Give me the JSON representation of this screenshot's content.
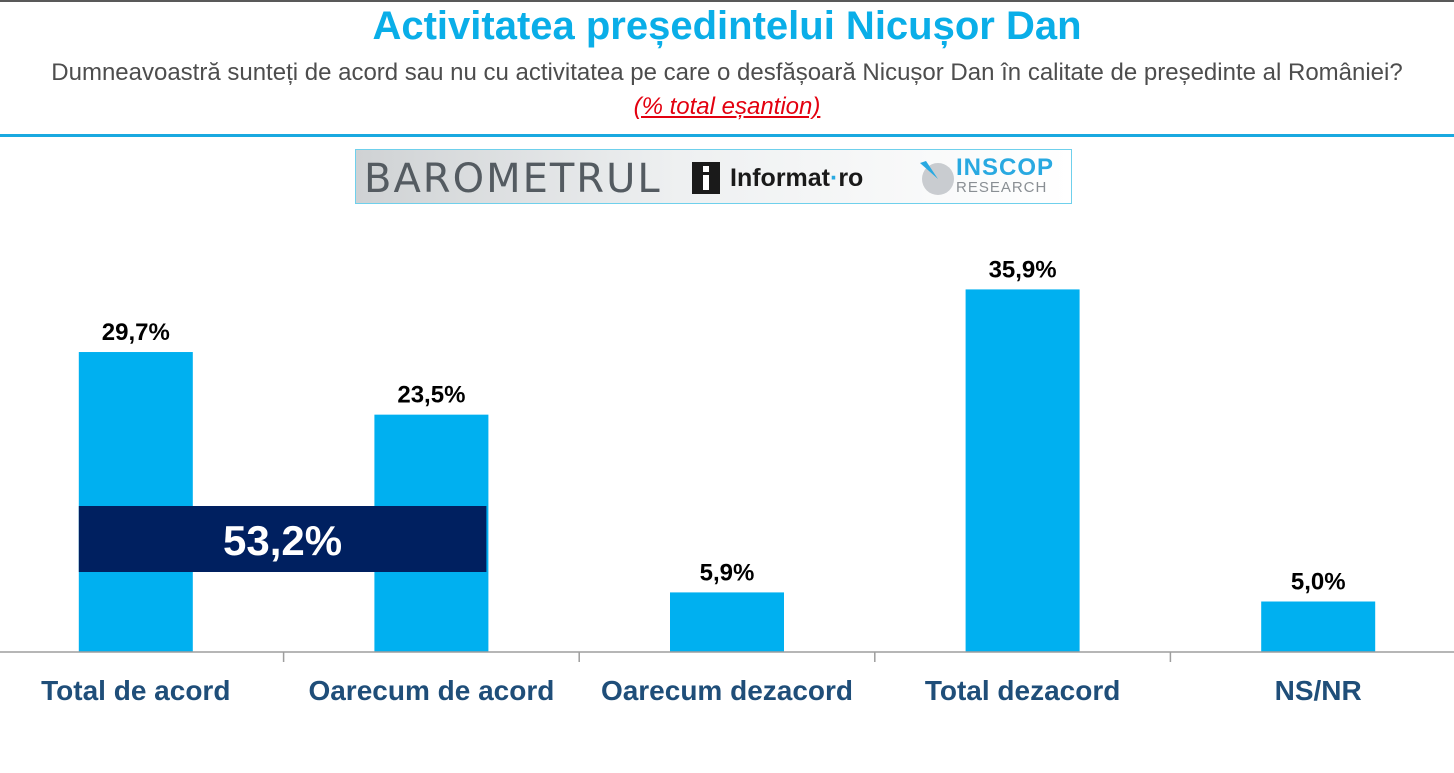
{
  "header": {
    "title": "Activitatea președintelui Nicușor Dan",
    "subtitle_text": "Dumneavoastră sunteți de acord sau nu cu activitatea pe care o desfășoară Nicușor Dan în calitate de președinte al României?",
    "subtitle_note": "(% total eșantion)"
  },
  "logo": {
    "barometrul": "BAROMETRUL",
    "informat": "Informat",
    "informat_dot": "·",
    "informat_tld": "ro",
    "inscop": "INSCOP",
    "research": "RESEARCH"
  },
  "colors": {
    "title": "#0aaee8",
    "bar": "#00b0f0",
    "aggregate_band": "#002060",
    "category_label": "#1f4e79",
    "subtitle_note": "#e3000f"
  },
  "chart_data": {
    "type": "bar",
    "title": "Activitatea președintelui Nicușor Dan",
    "categories": [
      "Total de acord",
      "Oarecum de acord",
      "Oarecum dezacord",
      "Total dezacord",
      "NS/NR"
    ],
    "values": [
      29.7,
      23.5,
      5.9,
      35.9,
      5.0
    ],
    "value_labels": [
      "29,7%",
      "23,5%",
      "5,9%",
      "35,9%",
      "5,0%"
    ],
    "ylim": [
      0,
      40
    ],
    "grid": false,
    "legend": "none",
    "annotation": {
      "label": "53,2%",
      "value": 53.2,
      "spans_categories": [
        "Total de acord",
        "Oarecum de acord"
      ]
    }
  }
}
